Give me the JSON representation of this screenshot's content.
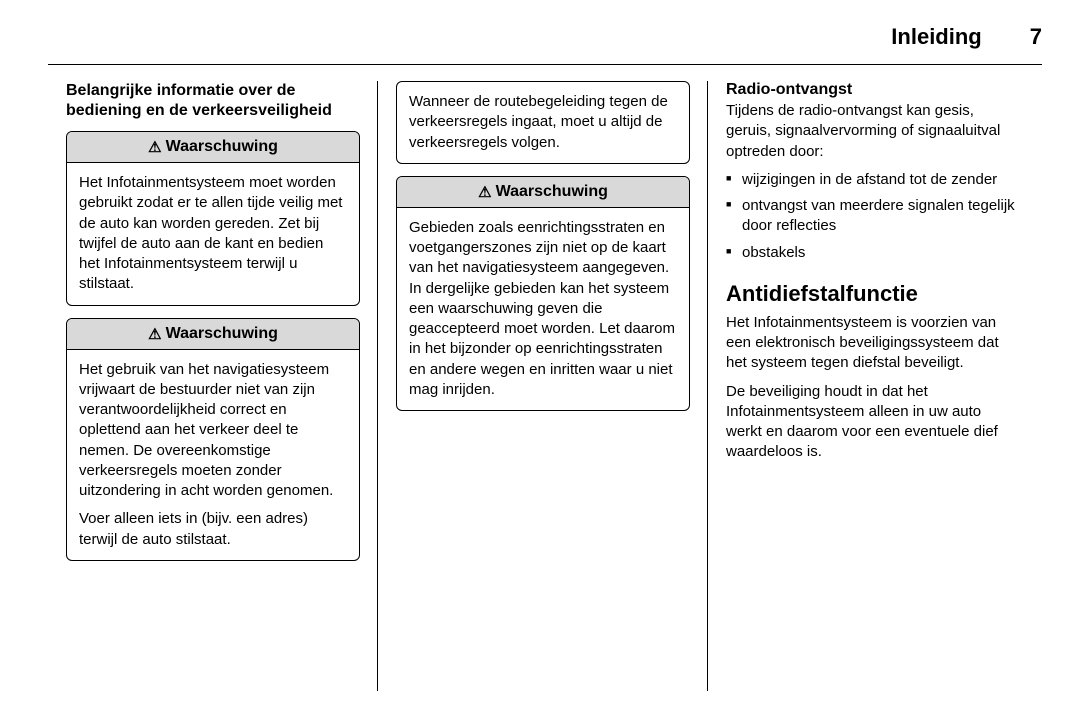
{
  "header": {
    "title": "Inleiding",
    "page_number": "7"
  },
  "col1": {
    "heading": "Belangrijke informatie over de bediening en de verkeersveiligheid",
    "warn1": {
      "label": "Waarschuwing",
      "body": "Het Infotainmentsysteem moet worden gebruikt zodat er te allen tijde veilig met de auto kan worden gereden. Zet bij twijfel de auto aan de kant en bedien het Infotainmentsysteem terwijl u stilstaat."
    },
    "warn2": {
      "label": "Waarschuwing",
      "p1": "Het gebruik van het navigatiesysteem vrijwaart de bestuurder niet van zijn verantwoordelijkheid correct en oplettend aan het verkeer deel te nemen. De overeenkomstige verkeersregels moeten zonder uitzondering in acht worden genomen.",
      "p2": "Voer alleen iets in (bijv. een adres) terwijl de auto stilstaat."
    }
  },
  "col2": {
    "box1": "Wanneer de routebegeleiding tegen de verkeersregels ingaat, moet u altijd de verkeersregels volgen.",
    "warn3": {
      "label": "Waarschuwing",
      "body": "Gebieden zoals eenrichtingsstraten en voetgangerszones zijn niet op de kaart van het navigatiesysteem aangegeven. In dergelijke gebieden kan het systeem een waarschuwing geven die geaccepteerd moet worden. Let daarom in het bijzonder op eenrichtingsstraten en andere wegen en inritten waar u niet mag inrijden."
    }
  },
  "col3": {
    "radio": {
      "heading": "Radio-ontvangst",
      "intro": "Tijdens de radio-ontvangst kan gesis, geruis, signaalvervorming of signaaluitval optreden door:",
      "items": [
        "wijzigingen in de afstand tot de zender",
        "ontvangst van meerdere signalen tegelijk door reflecties",
        "obstakels"
      ]
    },
    "anti": {
      "heading": "Antidiefstalfunctie",
      "p1": "Het Infotainmentsysteem is voorzien van een elektronisch beveiligingssysteem dat het systeem tegen diefstal beveiligt.",
      "p2": "De beveiliging houdt in dat het Infotainmentsysteem alleen in uw auto werkt en daarom voor een eventuele dief waardeloos is."
    }
  }
}
